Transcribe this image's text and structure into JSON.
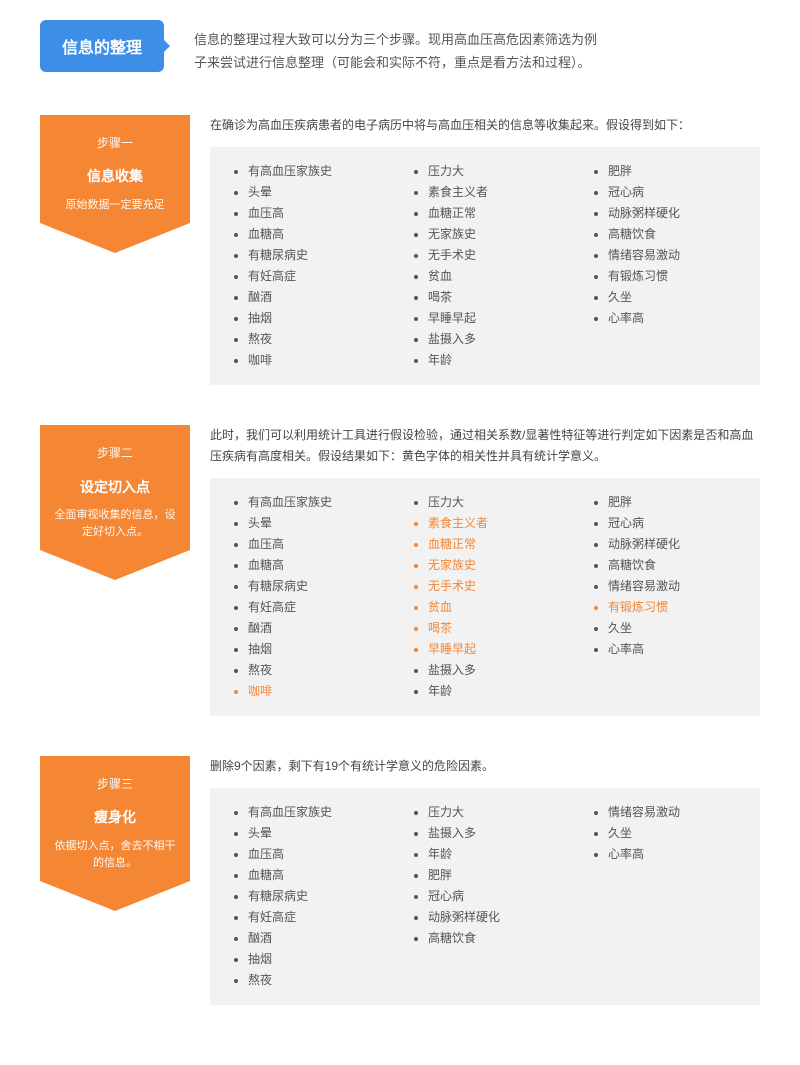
{
  "colors": {
    "bubble_bg": "#3d8ee6",
    "arrow_bg": "#f58634",
    "box_bg": "#f2f2f2",
    "text": "#333333",
    "text_muted": "#555555",
    "highlight": "#f58634",
    "white": "#ffffff"
  },
  "header": {
    "title": "信息的整理",
    "intro_line1": "信息的整理过程大致可以分为三个步骤。现用高血压高危因素筛选为例",
    "intro_line2": "子来尝试进行信息整理（可能会和实际不符，重点是看方法和过程）。"
  },
  "steps": [
    {
      "num": "步骤一",
      "title": "信息收集",
      "sub": "原始数据一定要充足",
      "desc": "在确诊为高血压疾病患者的电子病历中将与高血压相关的信息等收集起来。假设得到如下：",
      "cols": [
        [
          {
            "t": "有高血压家族史",
            "h": false
          },
          {
            "t": "头晕",
            "h": false
          },
          {
            "t": "血压高",
            "h": false
          },
          {
            "t": "血糖高",
            "h": false
          },
          {
            "t": "有糖尿病史",
            "h": false
          },
          {
            "t": "有妊高症",
            "h": false
          },
          {
            "t": "酗酒",
            "h": false
          },
          {
            "t": "抽烟",
            "h": false
          },
          {
            "t": "熬夜",
            "h": false
          },
          {
            "t": "咖啡",
            "h": false
          }
        ],
        [
          {
            "t": "压力大",
            "h": false
          },
          {
            "t": "素食主义者",
            "h": false
          },
          {
            "t": "血糖正常",
            "h": false
          },
          {
            "t": "无家族史",
            "h": false
          },
          {
            "t": "无手术史",
            "h": false
          },
          {
            "t": "贫血",
            "h": false
          },
          {
            "t": "喝茶",
            "h": false
          },
          {
            "t": "早睡早起",
            "h": false
          },
          {
            "t": "盐摄入多",
            "h": false
          },
          {
            "t": "年龄",
            "h": false
          }
        ],
        [
          {
            "t": "肥胖",
            "h": false
          },
          {
            "t": "冠心病",
            "h": false
          },
          {
            "t": "动脉粥样硬化",
            "h": false
          },
          {
            "t": "高糖饮食",
            "h": false
          },
          {
            "t": "情绪容易激动",
            "h": false
          },
          {
            "t": "有锻炼习惯",
            "h": false
          },
          {
            "t": "久坐",
            "h": false
          },
          {
            "t": "心率高",
            "h": false
          }
        ]
      ]
    },
    {
      "num": "步骤二",
      "title": "设定切入点",
      "sub": "全面审视收集的信息，设定好切入点。",
      "desc": "此时，我们可以利用统计工具进行假设检验，通过相关系数/显著性特征等进行判定如下因素是否和高血压疾病有高度相关。假设结果如下：黄色字体的相关性并具有统计学意义。",
      "cols": [
        [
          {
            "t": "有高血压家族史",
            "h": false
          },
          {
            "t": "头晕",
            "h": false
          },
          {
            "t": "血压高",
            "h": false
          },
          {
            "t": "血糖高",
            "h": false
          },
          {
            "t": "有糖尿病史",
            "h": false
          },
          {
            "t": "有妊高症",
            "h": false
          },
          {
            "t": "酗酒",
            "h": false
          },
          {
            "t": "抽烟",
            "h": false
          },
          {
            "t": "熬夜",
            "h": false
          },
          {
            "t": "咖啡",
            "h": true
          }
        ],
        [
          {
            "t": "压力大",
            "h": false
          },
          {
            "t": "素食主义者",
            "h": true
          },
          {
            "t": "血糖正常",
            "h": true
          },
          {
            "t": "无家族史",
            "h": true
          },
          {
            "t": "无手术史",
            "h": true
          },
          {
            "t": "贫血",
            "h": true
          },
          {
            "t": "喝茶",
            "h": true
          },
          {
            "t": "早睡早起",
            "h": true
          },
          {
            "t": "盐摄入多",
            "h": false
          },
          {
            "t": "年龄",
            "h": false
          }
        ],
        [
          {
            "t": "肥胖",
            "h": false
          },
          {
            "t": "冠心病",
            "h": false
          },
          {
            "t": "动脉粥样硬化",
            "h": false
          },
          {
            "t": "高糖饮食",
            "h": false
          },
          {
            "t": "情绪容易激动",
            "h": false
          },
          {
            "t": "有锻炼习惯",
            "h": true
          },
          {
            "t": "久坐",
            "h": false
          },
          {
            "t": "心率高",
            "h": false
          }
        ]
      ]
    },
    {
      "num": "步骤三",
      "title": "瘦身化",
      "sub": "依据切入点，舍去不相干的信息。",
      "desc": "删除9个因素，剩下有19个有统计学意义的危险因素。",
      "cols": [
        [
          {
            "t": "有高血压家族史",
            "h": false
          },
          {
            "t": "头晕",
            "h": false
          },
          {
            "t": "血压高",
            "h": false
          },
          {
            "t": "血糖高",
            "h": false
          },
          {
            "t": "有糖尿病史",
            "h": false
          },
          {
            "t": "有妊高症",
            "h": false
          },
          {
            "t": "酗酒",
            "h": false
          },
          {
            "t": "抽烟",
            "h": false
          },
          {
            "t": "熬夜",
            "h": false
          }
        ],
        [
          {
            "t": "压力大",
            "h": false
          },
          {
            "t": "盐摄入多",
            "h": false
          },
          {
            "t": "年龄",
            "h": false
          },
          {
            "t": "肥胖",
            "h": false
          },
          {
            "t": "冠心病",
            "h": false
          },
          {
            "t": "动脉粥样硬化",
            "h": false
          },
          {
            "t": "高糖饮食",
            "h": false
          }
        ],
        [
          {
            "t": "情绪容易激动",
            "h": false
          },
          {
            "t": "久坐",
            "h": false
          },
          {
            "t": "心率高",
            "h": false
          }
        ]
      ]
    }
  ]
}
